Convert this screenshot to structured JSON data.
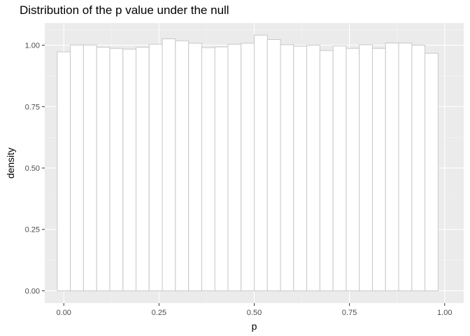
{
  "chart_data": {
    "type": "bar",
    "title": "Distribution of the p value under the null",
    "xlabel": "p",
    "ylabel": "density",
    "xlim": [
      -0.05,
      1.05
    ],
    "ylim": [
      -0.05,
      1.09
    ],
    "xticks": [
      0.0,
      0.25,
      0.5,
      0.75,
      1.0
    ],
    "xtick_labels": [
      "0.00",
      "0.25",
      "0.50",
      "0.75",
      "1.00"
    ],
    "yticks": [
      0.0,
      0.25,
      0.5,
      0.75,
      1.0
    ],
    "ytick_labels": [
      "0.00",
      "0.25",
      "0.50",
      "0.75",
      "1.00"
    ],
    "grid": true,
    "bins": [
      {
        "x0": -0.0172,
        "x1": 0.0172,
        "y": 0.973
      },
      {
        "x0": 0.0172,
        "x1": 0.0517,
        "y": 1.001
      },
      {
        "x0": 0.0517,
        "x1": 0.0862,
        "y": 1.001
      },
      {
        "x0": 0.0862,
        "x1": 0.1207,
        "y": 0.992
      },
      {
        "x0": 0.1207,
        "x1": 0.1552,
        "y": 0.987
      },
      {
        "x0": 0.1552,
        "x1": 0.1897,
        "y": 0.984
      },
      {
        "x0": 0.1897,
        "x1": 0.2241,
        "y": 0.992
      },
      {
        "x0": 0.2241,
        "x1": 0.2586,
        "y": 1.004
      },
      {
        "x0": 0.2586,
        "x1": 0.2931,
        "y": 1.026
      },
      {
        "x0": 0.2931,
        "x1": 0.3276,
        "y": 1.018
      },
      {
        "x0": 0.3276,
        "x1": 0.3621,
        "y": 1.008
      },
      {
        "x0": 0.3621,
        "x1": 0.3966,
        "y": 0.99
      },
      {
        "x0": 0.3966,
        "x1": 0.431,
        "y": 0.993
      },
      {
        "x0": 0.431,
        "x1": 0.4655,
        "y": 1.004
      },
      {
        "x0": 0.4655,
        "x1": 0.5,
        "y": 1.008
      },
      {
        "x0": 0.5,
        "x1": 0.5345,
        "y": 1.041
      },
      {
        "x0": 0.5345,
        "x1": 0.569,
        "y": 1.023
      },
      {
        "x0": 0.569,
        "x1": 0.6034,
        "y": 1.002
      },
      {
        "x0": 0.6034,
        "x1": 0.6379,
        "y": 0.996
      },
      {
        "x0": 0.6379,
        "x1": 0.6724,
        "y": 1.0
      },
      {
        "x0": 0.6724,
        "x1": 0.7069,
        "y": 0.978
      },
      {
        "x0": 0.7069,
        "x1": 0.7414,
        "y": 0.997
      },
      {
        "x0": 0.7414,
        "x1": 0.7759,
        "y": 0.987
      },
      {
        "x0": 0.7759,
        "x1": 0.8103,
        "y": 1.002
      },
      {
        "x0": 0.8103,
        "x1": 0.8448,
        "y": 0.987
      },
      {
        "x0": 0.8448,
        "x1": 0.8793,
        "y": 1.009
      },
      {
        "x0": 0.8793,
        "x1": 0.9138,
        "y": 1.009
      },
      {
        "x0": 0.9138,
        "x1": 0.9483,
        "y": 1.0
      },
      {
        "x0": 0.9483,
        "x1": 0.9828,
        "y": 0.967
      }
    ],
    "colors": {
      "panel_background": "#ebebeb",
      "grid_major": "#ffffff",
      "grid_minor": "#f5f5f5",
      "bar_fill": "#ffffff",
      "bar_stroke": "#c8c8c8",
      "tick_mark": "#333333",
      "tick_text": "#4d4d4d"
    }
  }
}
